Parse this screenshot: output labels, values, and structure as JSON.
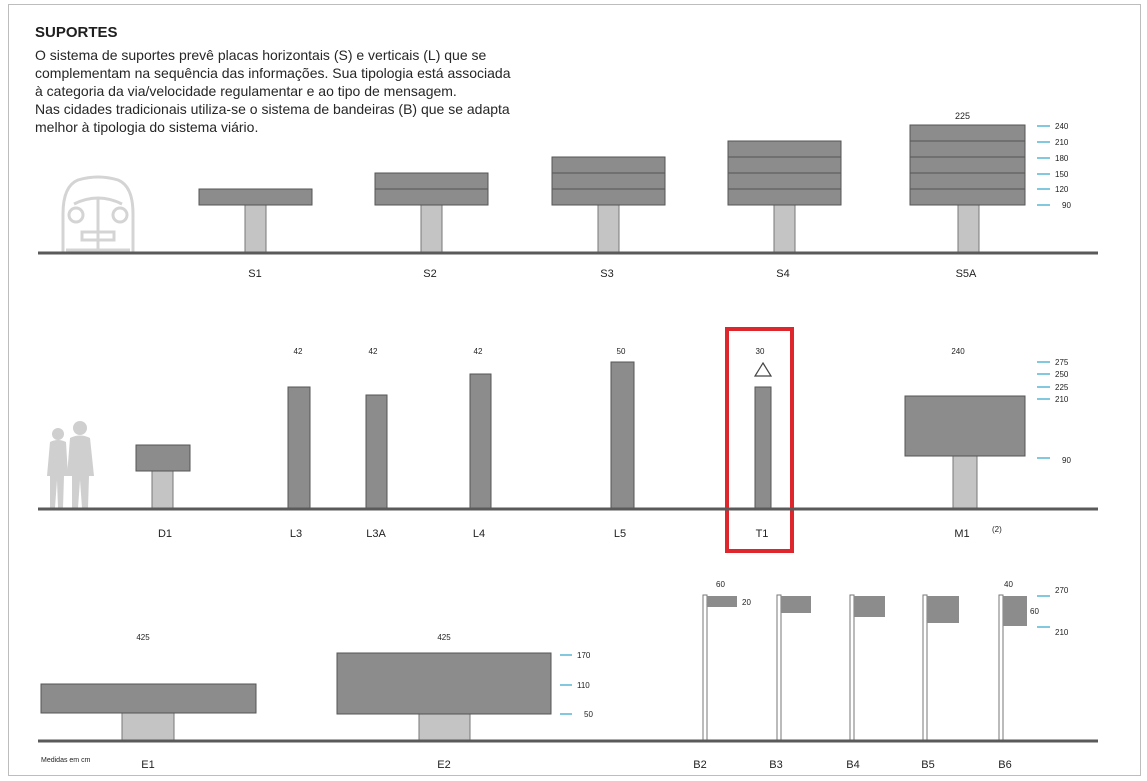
{
  "title": "SUPORTES",
  "description": [
    "O sistema de suportes prevê placas horizontais (S) e verticais (L) que se",
    "complementam na sequência das informações. Sua tipologia está associada",
    "à categoria da via/velocidade regulamentar e ao tipo de mensagem.",
    "Nas cidades tradicionais utiliza-se o sistema de bandeiras (B) que se adapta",
    "melhor à tipologia do sistema viário."
  ],
  "row1": {
    "signs": [
      "S1",
      "S2",
      "S3",
      "S4",
      "S5A"
    ],
    "s5a_width": "225",
    "scale": [
      "240",
      "210",
      "180",
      "150",
      "120",
      "90"
    ]
  },
  "row2": {
    "signs": [
      "D1",
      "L3",
      "L3A",
      "L4",
      "L5",
      "T1",
      "M1"
    ],
    "widths": {
      "L3": "42",
      "L3A": "42",
      "L4": "42",
      "L5": "50",
      "T1": "30",
      "M1": "240"
    },
    "m1_note": "(2)",
    "scale": [
      "275",
      "250",
      "225",
      "210",
      "90"
    ],
    "highlight": "T1",
    "highlight_color": "#e0262d"
  },
  "row3": {
    "signs": [
      "E1",
      "E2",
      "B2",
      "B3",
      "B4",
      "B5",
      "B6"
    ],
    "e1_width": "425",
    "e2_width": "425",
    "e2_scale": [
      "170",
      "110",
      "50"
    ],
    "b2_width": "60",
    "b2_height": "20",
    "b6_width": "40",
    "b6_height": "60",
    "b_scale": [
      "270",
      "210"
    ]
  },
  "footnote": "Medidas em cm",
  "colors": {
    "panel": "#8c8c8c",
    "post": "#c4c4c4",
    "ground": "#5a5a5a",
    "scale": "#2fa3c9"
  }
}
